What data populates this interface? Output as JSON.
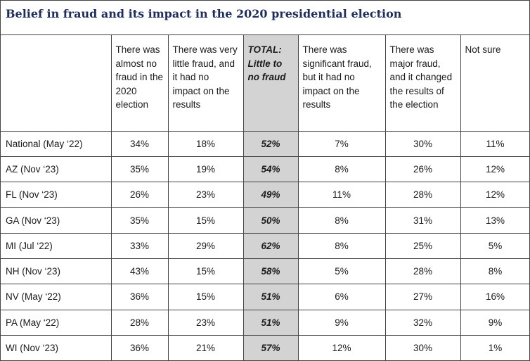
{
  "title": "Belief in fraud and its impact in the 2020 presidential election",
  "table": {
    "headers": [
      "",
      "There was almost no fraud in the 2020 election",
      "There was very little fraud, and it had no impact on the results",
      "TOTAL: Little to no fraud",
      "There was significant fraud, but it had no impact on the results",
      "There was major fraud, and it changed the results of the election",
      "Not sure"
    ],
    "rows": [
      [
        "National (May ‘22)",
        "34%",
        "18%",
        "52%",
        "7%",
        "30%",
        "11%"
      ],
      [
        "AZ (Nov ‘23)",
        "35%",
        "19%",
        "54%",
        "8%",
        "26%",
        "12%"
      ],
      [
        "FL (Nov ‘23)",
        "26%",
        "23%",
        "49%",
        "11%",
        "28%",
        "12%"
      ],
      [
        "GA (Nov ‘23)",
        "35%",
        "15%",
        "50%",
        "8%",
        "31%",
        "13%"
      ],
      [
        "MI (Jul ‘22)",
        "33%",
        "29%",
        "62%",
        "8%",
        "25%",
        "5%"
      ],
      [
        "NH (Nov ‘23)",
        "43%",
        "15%",
        "58%",
        "5%",
        "28%",
        "8%"
      ],
      [
        "NV (May ‘22)",
        "36%",
        "15%",
        "51%",
        "6%",
        "27%",
        "16%"
      ],
      [
        "PA (May ‘22)",
        "28%",
        "23%",
        "51%",
        "9%",
        "32%",
        "9%"
      ],
      [
        "WI (Nov ‘23)",
        "36%",
        "21%",
        "57%",
        "12%",
        "30%",
        "1%"
      ]
    ]
  },
  "colors": {
    "title": "#1f2d5c",
    "total_column_bg": "#d3d3d3",
    "border": "#444444"
  }
}
